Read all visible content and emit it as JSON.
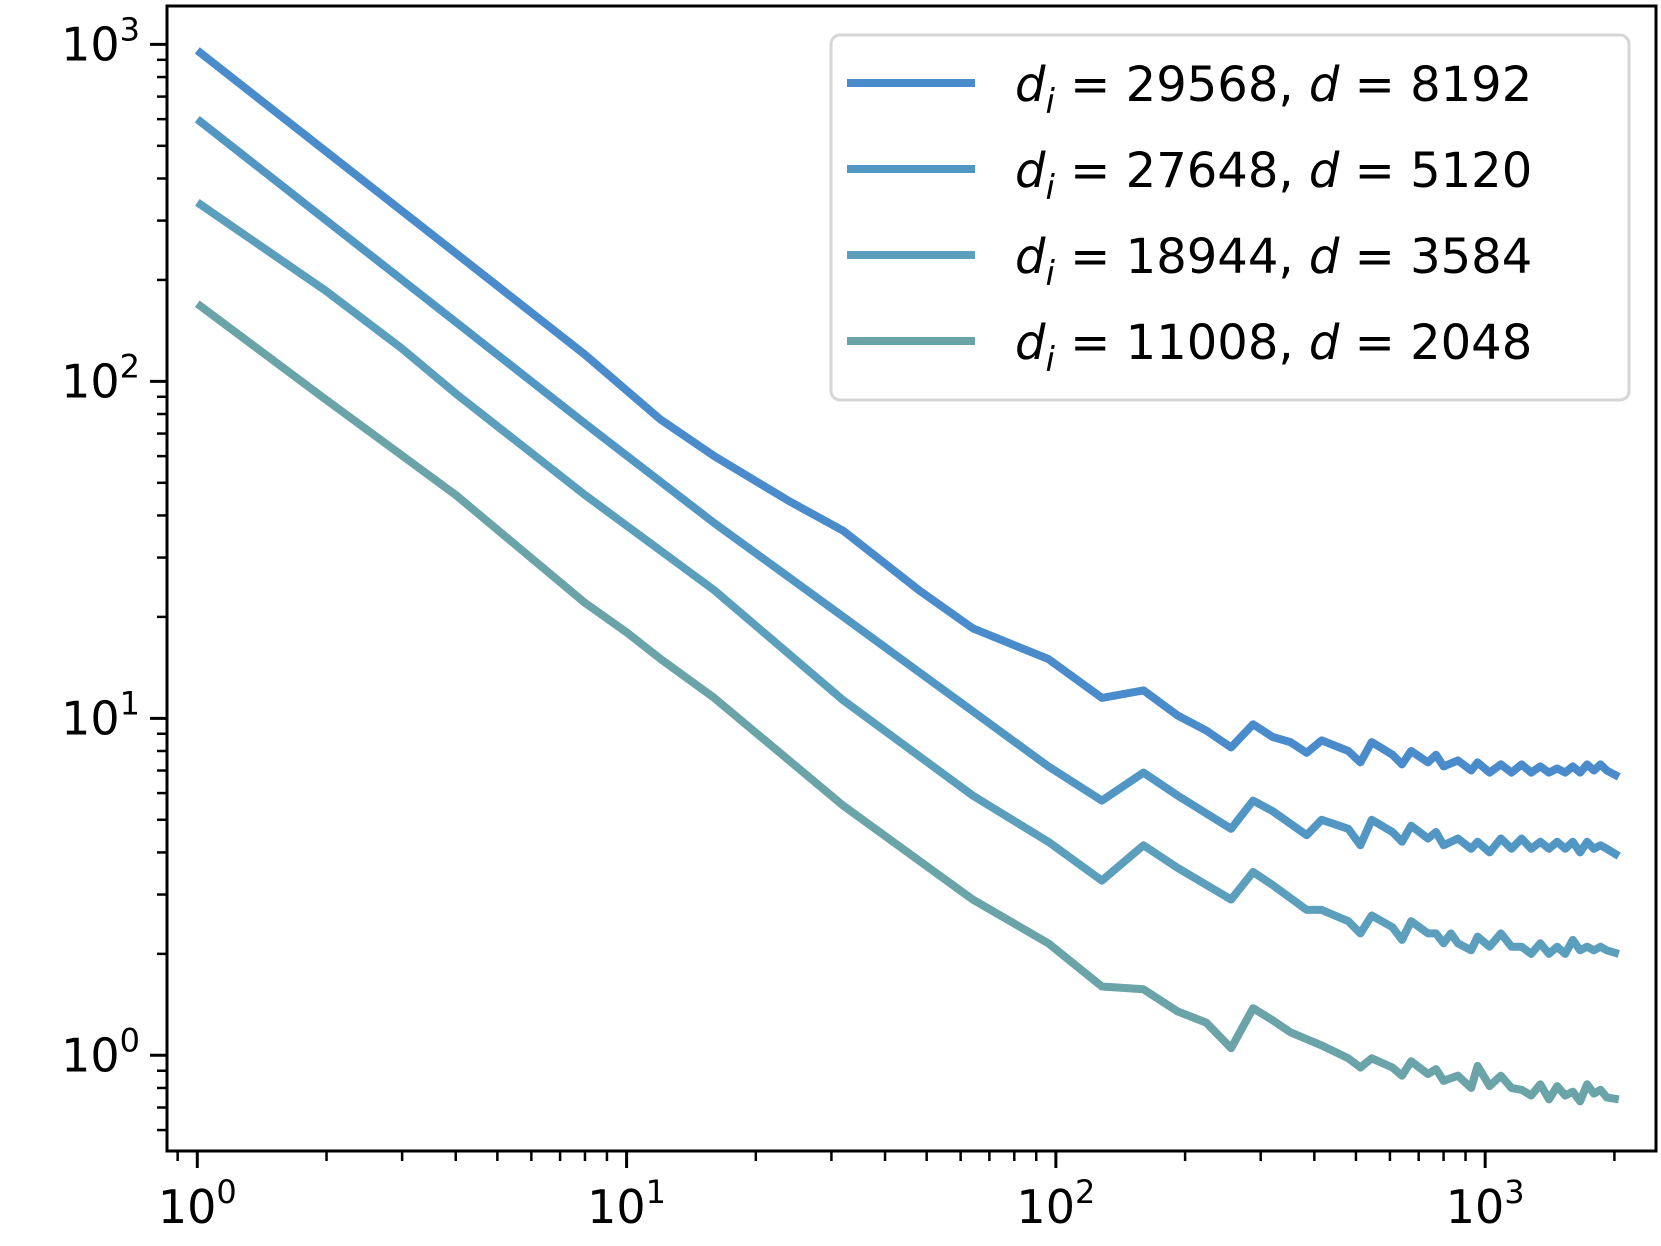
{
  "chart_data": {
    "type": "line",
    "title": "",
    "xlabel": "",
    "ylabel": "",
    "xscale": "log",
    "yscale": "log",
    "xlim": [
      0.85,
      2500
    ],
    "ylim": [
      0.52,
      1300
    ],
    "x_ticks": [
      {
        "value": 1,
        "base": "10",
        "exp": "0"
      },
      {
        "value": 10,
        "base": "10",
        "exp": "1"
      },
      {
        "value": 100,
        "base": "10",
        "exp": "2"
      },
      {
        "value": 1000,
        "base": "10",
        "exp": "3"
      }
    ],
    "y_ticks": [
      {
        "value": 1,
        "base": "10",
        "exp": "0"
      },
      {
        "value": 10,
        "base": "10",
        "exp": "1"
      },
      {
        "value": 100,
        "base": "10",
        "exp": "2"
      },
      {
        "value": 1000,
        "base": "10",
        "exp": "3"
      }
    ],
    "grid": false,
    "legend_position": "top-right",
    "series": [
      {
        "name": "d_i = 29568, d = 8192",
        "legend": {
          "di": "29568",
          "d": "8192"
        },
        "color": "#4a8bcc",
        "points": [
          [
            1,
            960
          ],
          [
            2,
            480
          ],
          [
            4,
            240
          ],
          [
            8,
            120
          ],
          [
            12,
            77
          ],
          [
            16,
            60
          ],
          [
            24,
            44
          ],
          [
            32,
            36
          ],
          [
            48,
            24
          ],
          [
            64,
            18.5
          ],
          [
            96,
            15
          ],
          [
            128,
            11.5
          ],
          [
            160,
            12.1
          ],
          [
            192,
            10.2
          ],
          [
            224,
            9.2
          ],
          [
            256,
            8.2
          ],
          [
            288,
            9.6
          ],
          [
            320,
            8.8
          ],
          [
            352,
            8.5
          ],
          [
            384,
            7.9
          ],
          [
            416,
            8.6
          ],
          [
            480,
            8.0
          ],
          [
            512,
            7.4
          ],
          [
            544,
            8.5
          ],
          [
            608,
            7.8
          ],
          [
            640,
            7.3
          ],
          [
            672,
            8.0
          ],
          [
            736,
            7.4
          ],
          [
            768,
            7.8
          ],
          [
            800,
            7.2
          ],
          [
            864,
            7.5
          ],
          [
            928,
            7.0
          ],
          [
            960,
            7.4
          ],
          [
            1024,
            6.9
          ],
          [
            1088,
            7.3
          ],
          [
            1152,
            6.9
          ],
          [
            1216,
            7.3
          ],
          [
            1280,
            6.9
          ],
          [
            1344,
            7.2
          ],
          [
            1408,
            6.9
          ],
          [
            1472,
            7.1
          ],
          [
            1536,
            6.9
          ],
          [
            1600,
            7.2
          ],
          [
            1664,
            6.9
          ],
          [
            1728,
            7.3
          ],
          [
            1792,
            7.0
          ],
          [
            1856,
            7.3
          ],
          [
            1920,
            7.0
          ],
          [
            2048,
            6.7
          ]
        ]
      },
      {
        "name": "d_i = 27648, d = 5120",
        "legend": {
          "di": "27648",
          "d": "5120"
        },
        "color": "#5297c4",
        "points": [
          [
            1,
            600
          ],
          [
            2,
            300
          ],
          [
            4,
            150
          ],
          [
            8,
            75
          ],
          [
            16,
            38
          ],
          [
            32,
            20
          ],
          [
            64,
            10.5
          ],
          [
            96,
            7.2
          ],
          [
            128,
            5.7
          ],
          [
            160,
            6.9
          ],
          [
            192,
            5.9
          ],
          [
            256,
            4.7
          ],
          [
            288,
            5.7
          ],
          [
            320,
            5.3
          ],
          [
            384,
            4.5
          ],
          [
            416,
            5.0
          ],
          [
            480,
            4.7
          ],
          [
            512,
            4.2
          ],
          [
            544,
            5.0
          ],
          [
            608,
            4.6
          ],
          [
            640,
            4.3
          ],
          [
            672,
            4.8
          ],
          [
            736,
            4.4
          ],
          [
            768,
            4.6
          ],
          [
            800,
            4.2
          ],
          [
            864,
            4.4
          ],
          [
            928,
            4.1
          ],
          [
            960,
            4.3
          ],
          [
            1024,
            4.0
          ],
          [
            1088,
            4.4
          ],
          [
            1152,
            4.1
          ],
          [
            1216,
            4.4
          ],
          [
            1280,
            4.1
          ],
          [
            1344,
            4.3
          ],
          [
            1408,
            4.1
          ],
          [
            1472,
            4.3
          ],
          [
            1536,
            4.1
          ],
          [
            1600,
            4.3
          ],
          [
            1664,
            4.0
          ],
          [
            1728,
            4.3
          ],
          [
            1792,
            4.1
          ],
          [
            1856,
            4.2
          ],
          [
            1920,
            4.1
          ],
          [
            2048,
            3.9
          ]
        ]
      },
      {
        "name": "d_i = 18944, d = 3584",
        "legend": {
          "di": "18944",
          "d": "3584"
        },
        "color": "#5c9fbd",
        "points": [
          [
            1,
            340
          ],
          [
            2,
            185
          ],
          [
            3,
            125
          ],
          [
            4,
            92
          ],
          [
            8,
            46
          ],
          [
            16,
            24
          ],
          [
            32,
            11.3
          ],
          [
            64,
            5.9
          ],
          [
            96,
            4.3
          ],
          [
            128,
            3.3
          ],
          [
            160,
            4.2
          ],
          [
            192,
            3.6
          ],
          [
            256,
            2.9
          ],
          [
            288,
            3.5
          ],
          [
            320,
            3.2
          ],
          [
            384,
            2.7
          ],
          [
            416,
            2.7
          ],
          [
            480,
            2.5
          ],
          [
            512,
            2.3
          ],
          [
            544,
            2.6
          ],
          [
            608,
            2.4
          ],
          [
            640,
            2.2
          ],
          [
            672,
            2.5
          ],
          [
            736,
            2.3
          ],
          [
            768,
            2.3
          ],
          [
            800,
            2.15
          ],
          [
            832,
            2.3
          ],
          [
            864,
            2.15
          ],
          [
            928,
            2.05
          ],
          [
            960,
            2.25
          ],
          [
            1024,
            2.1
          ],
          [
            1088,
            2.3
          ],
          [
            1152,
            2.1
          ],
          [
            1216,
            2.1
          ],
          [
            1280,
            2.0
          ],
          [
            1344,
            2.15
          ],
          [
            1408,
            2.0
          ],
          [
            1472,
            2.1
          ],
          [
            1536,
            2.0
          ],
          [
            1600,
            2.2
          ],
          [
            1664,
            2.05
          ],
          [
            1728,
            2.1
          ],
          [
            1792,
            2.05
          ],
          [
            1856,
            2.1
          ],
          [
            1920,
            2.05
          ],
          [
            2048,
            2.0
          ]
        ]
      },
      {
        "name": "d_i = 11008, d = 2048",
        "legend": {
          "di": "11008",
          "d": "2048"
        },
        "color": "#6aa4a8",
        "points": [
          [
            1,
            170
          ],
          [
            2,
            88
          ],
          [
            4,
            46
          ],
          [
            8,
            22
          ],
          [
            10,
            18
          ],
          [
            12,
            15
          ],
          [
            16,
            11.5
          ],
          [
            32,
            5.5
          ],
          [
            64,
            2.9
          ],
          [
            96,
            2.15
          ],
          [
            128,
            1.6
          ],
          [
            160,
            1.57
          ],
          [
            192,
            1.35
          ],
          [
            224,
            1.25
          ],
          [
            256,
            1.05
          ],
          [
            288,
            1.38
          ],
          [
            320,
            1.27
          ],
          [
            352,
            1.17
          ],
          [
            416,
            1.07
          ],
          [
            480,
            0.98
          ],
          [
            512,
            0.92
          ],
          [
            544,
            0.98
          ],
          [
            608,
            0.92
          ],
          [
            640,
            0.87
          ],
          [
            672,
            0.96
          ],
          [
            736,
            0.88
          ],
          [
            768,
            0.91
          ],
          [
            800,
            0.84
          ],
          [
            864,
            0.87
          ],
          [
            928,
            0.8
          ],
          [
            960,
            0.93
          ],
          [
            1024,
            0.81
          ],
          [
            1088,
            0.87
          ],
          [
            1152,
            0.8
          ],
          [
            1216,
            0.79
          ],
          [
            1280,
            0.76
          ],
          [
            1344,
            0.82
          ],
          [
            1408,
            0.74
          ],
          [
            1472,
            0.81
          ],
          [
            1536,
            0.76
          ],
          [
            1600,
            0.78
          ],
          [
            1664,
            0.73
          ],
          [
            1728,
            0.82
          ],
          [
            1792,
            0.77
          ],
          [
            1856,
            0.79
          ],
          [
            1920,
            0.75
          ],
          [
            2048,
            0.74
          ]
        ]
      }
    ]
  }
}
